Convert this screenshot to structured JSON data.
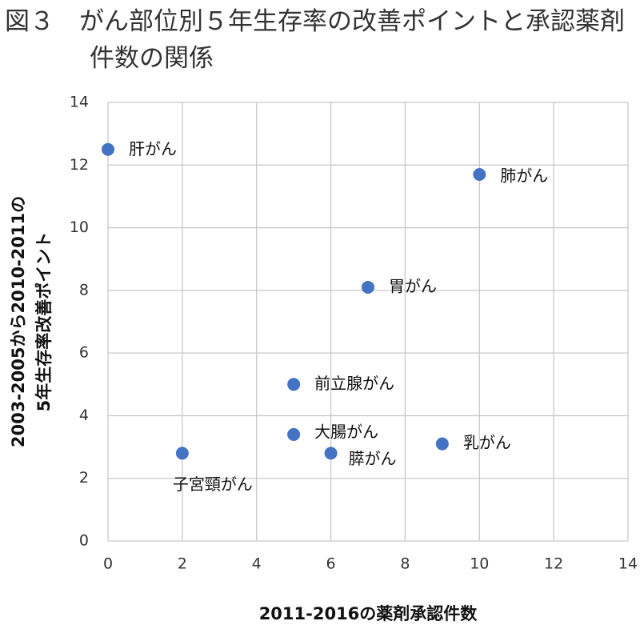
{
  "chart_data": {
    "type": "scatter",
    "title": "図３　がん部位別５年生存率の改善ポイントと承認薬剤件数の関係",
    "xlabel": "2011-2016の薬剤承認件数",
    "ylabel": [
      "2003-2005から2010-2011の",
      "5年生存率改善ポイント"
    ],
    "labels": [
      "肝がん",
      "肺がん",
      "胃がん",
      "前立腺がん",
      "大腸がん",
      "膵がん",
      "乳がん",
      "子宮頸がん"
    ],
    "x": [
      0,
      10,
      7,
      5,
      5,
      6,
      9,
      2
    ],
    "values": [
      12.5,
      11.7,
      8.1,
      5,
      3.4,
      2.8,
      3.1,
      2.8
    ],
    "color": "#4472c4",
    "xlim": [
      0,
      14
    ],
    "xticks": [
      0,
      2,
      4,
      6,
      8,
      10,
      12,
      14
    ],
    "ylim": [
      0,
      14
    ],
    "yticks": [
      0,
      2,
      4,
      6,
      8,
      10,
      12,
      14
    ],
    "grid": true
  }
}
